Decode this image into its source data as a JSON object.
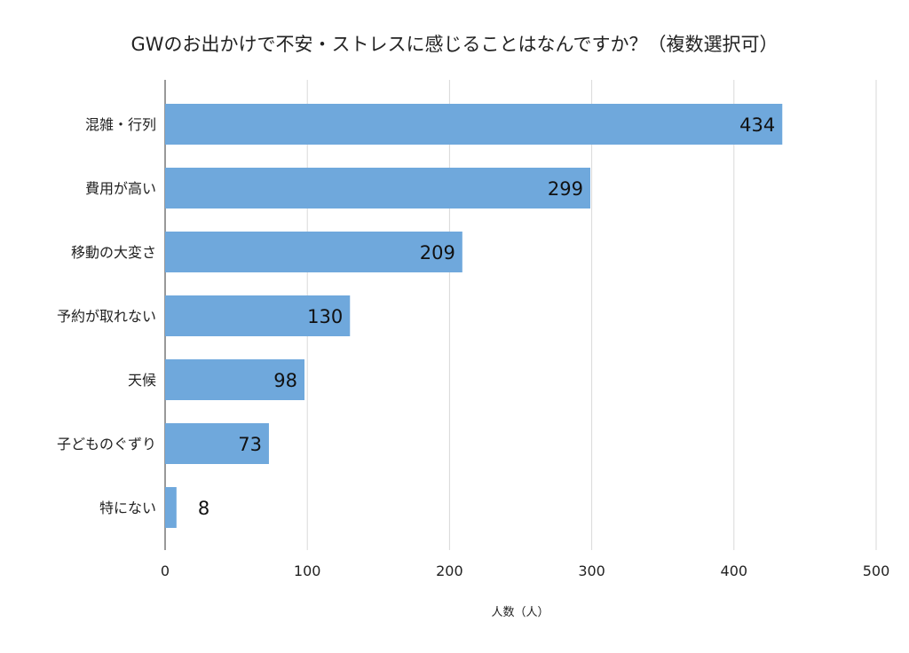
{
  "chart_data": {
    "type": "bar",
    "orientation": "horizontal",
    "title": "GWのお出かけで不安・ストレスに感じることはなんですか？（複数選択可）",
    "categories": [
      "混雑・行列",
      "費用が高い",
      "移動の大変さ",
      "予約が取れない",
      "天候",
      "子どものぐずり",
      "特にない"
    ],
    "values": [
      434,
      299,
      209,
      130,
      98,
      73,
      8
    ],
    "xlabel": "人数（人）",
    "ylabel": "",
    "xlim": [
      0,
      500
    ],
    "xticks": [
      "0",
      "100",
      "200",
      "300",
      "400",
      "500"
    ],
    "grid": true,
    "bar_color": "#6fa8dc",
    "data_labels": true
  }
}
